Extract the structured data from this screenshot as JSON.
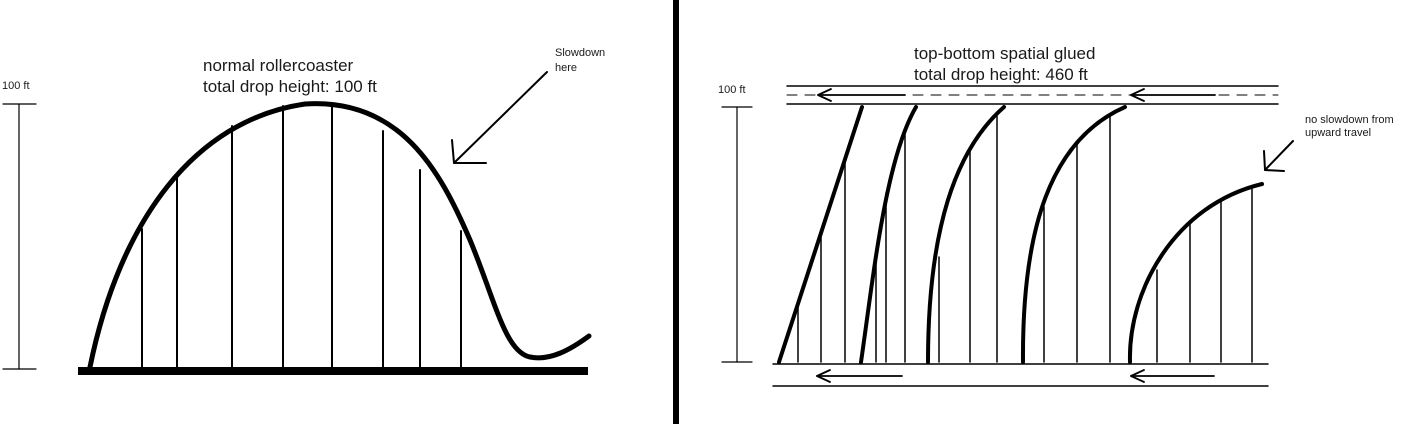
{
  "left_panel": {
    "title_line1": "normal rollercoaster",
    "title_line2": "total drop height: 100 ft",
    "height_label": "100 ft",
    "annotation_line1": "Slowdown",
    "annotation_line2": "here"
  },
  "right_panel": {
    "title_line1": "top-bottom spatial glued",
    "title_line2": "total drop height: 460 ft",
    "height_label": "100 ft",
    "annotation_line1": "no slowdown from",
    "annotation_line2": "upward travel"
  },
  "colors": {
    "ink": "#000000",
    "background": "#ffffff"
  }
}
